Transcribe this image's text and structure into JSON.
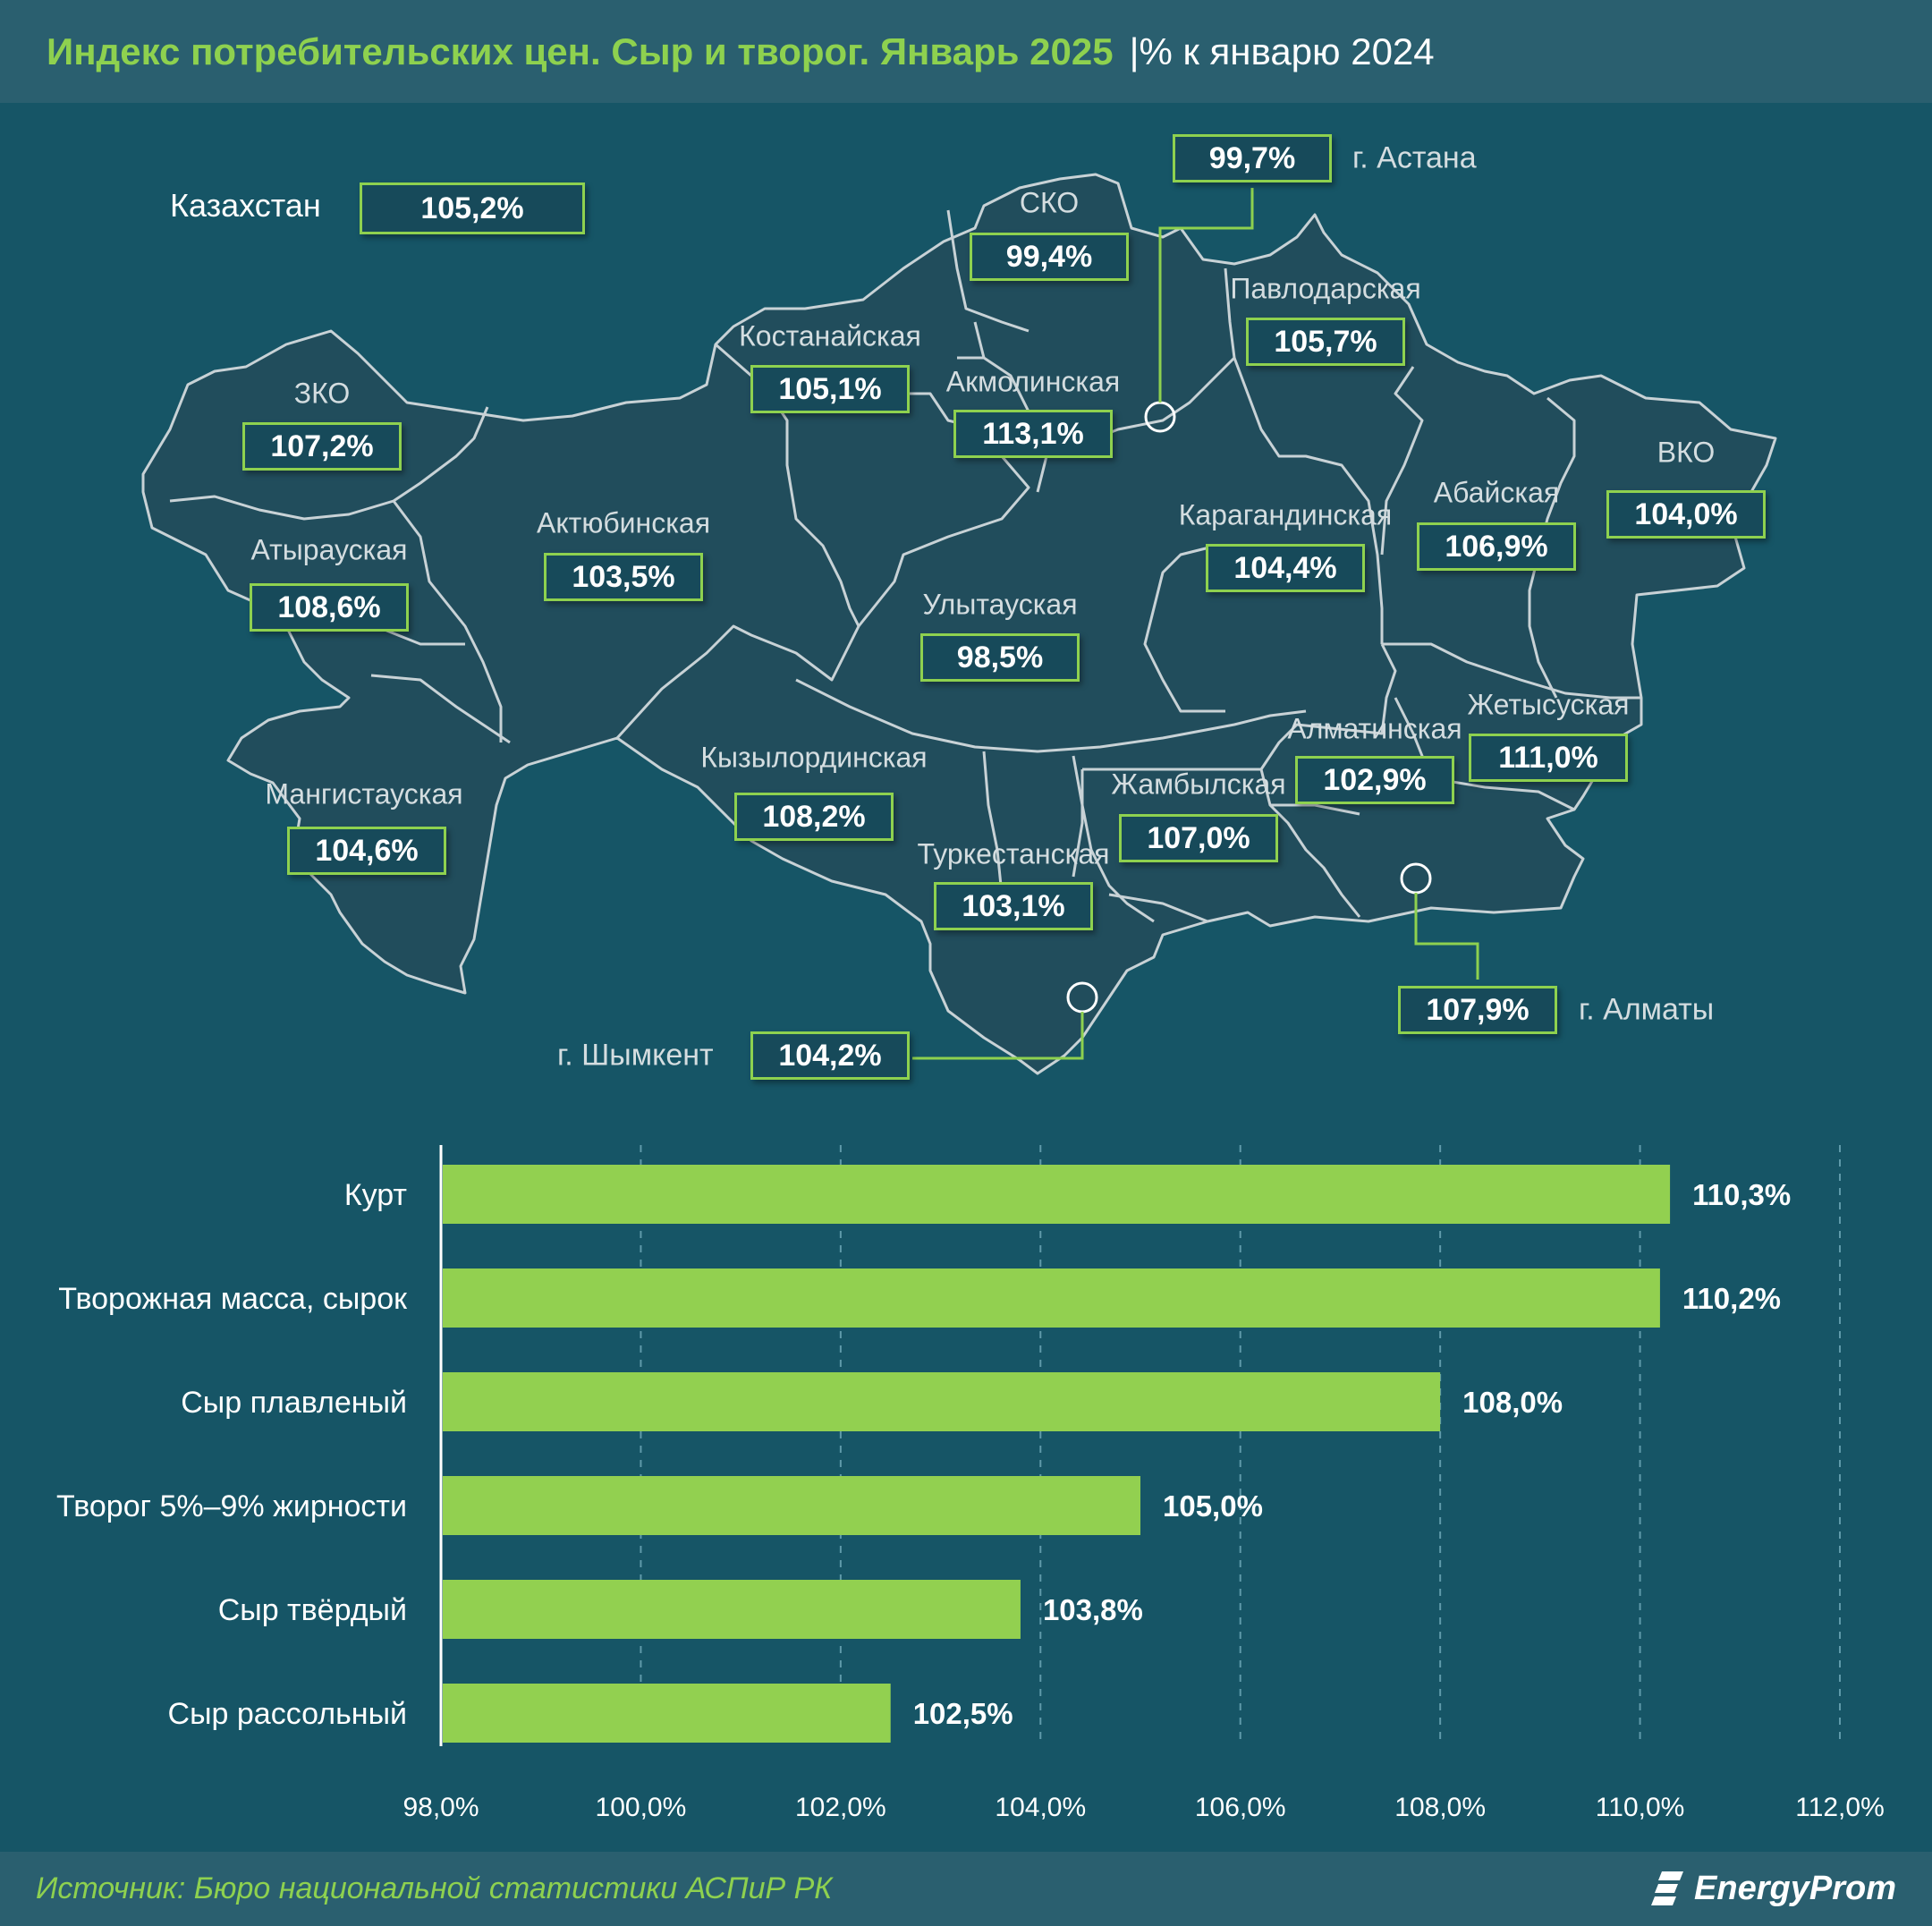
{
  "header": {
    "title": "Индекс потребительских цен. Сыр и творог. Январь 2025",
    "subtitle": "|% к январю 2024"
  },
  "map": {
    "kazakhstan": {
      "label": "Казахстан",
      "value": "105,2%"
    },
    "regions": [
      {
        "name": "ЗКО",
        "value": "107,2%"
      },
      {
        "name": "Атырауская",
        "value": "108,6%"
      },
      {
        "name": "Мангистауская",
        "value": "104,6%"
      },
      {
        "name": "Актюбинская",
        "value": "103,5%"
      },
      {
        "name": "Костанайская",
        "value": "105,1%"
      },
      {
        "name": "СКО",
        "value": "99,4%"
      },
      {
        "name": "Акмолинская",
        "value": "113,1%"
      },
      {
        "name": "Павлодарская",
        "value": "105,7%"
      },
      {
        "name": "Карагандинская",
        "value": "104,4%"
      },
      {
        "name": "Абайская",
        "value": "106,9%"
      },
      {
        "name": "ВКО",
        "value": "104,0%"
      },
      {
        "name": "Улытауская",
        "value": "98,5%"
      },
      {
        "name": "Кызылординская",
        "value": "108,2%"
      },
      {
        "name": "Туркестанская",
        "value": "103,1%"
      },
      {
        "name": "Жамбылская",
        "value": "107,0%"
      },
      {
        "name": "Алматинская",
        "value": "102,9%"
      },
      {
        "name": "Жетысуская",
        "value": "111,0%"
      }
    ],
    "cities": [
      {
        "name": "г. Астана",
        "value": "99,7%"
      },
      {
        "name": "г. Шымкент",
        "value": "104,2%"
      },
      {
        "name": "г. Алматы",
        "value": "107,9%"
      }
    ]
  },
  "chart_data": {
    "type": "bar",
    "orientation": "horizontal",
    "categories": [
      "Курт",
      "Творожная масса, сырок",
      "Сыр плавленый",
      "Творог 5%–9% жирности",
      "Сыр твёрдый",
      "Сыр рассольный"
    ],
    "values": [
      110.3,
      110.2,
      108.0,
      105.0,
      103.8,
      102.5
    ],
    "value_labels": [
      "110,3%",
      "110,2%",
      "108,0%",
      "105,0%",
      "103,8%",
      "102,5%"
    ],
    "xlim": [
      98,
      112
    ],
    "x_ticks": [
      98,
      100,
      102,
      104,
      106,
      108,
      110,
      112
    ],
    "x_tick_labels": [
      "98,0%",
      "100,0%",
      "102,0%",
      "104,0%",
      "106,0%",
      "108,0%",
      "110,0%",
      "112,0%"
    ],
    "grid": "vertical dashed",
    "bar_color": "#92d050"
  },
  "footer": {
    "source": "Источник: Бюро национальной статистики АСПиР РК",
    "brand": "EnergyProm"
  },
  "colors": {
    "background": "#165566",
    "accent": "#8ed14f",
    "map_fill": "#214d5c",
    "map_border": "#c8d2d6"
  }
}
